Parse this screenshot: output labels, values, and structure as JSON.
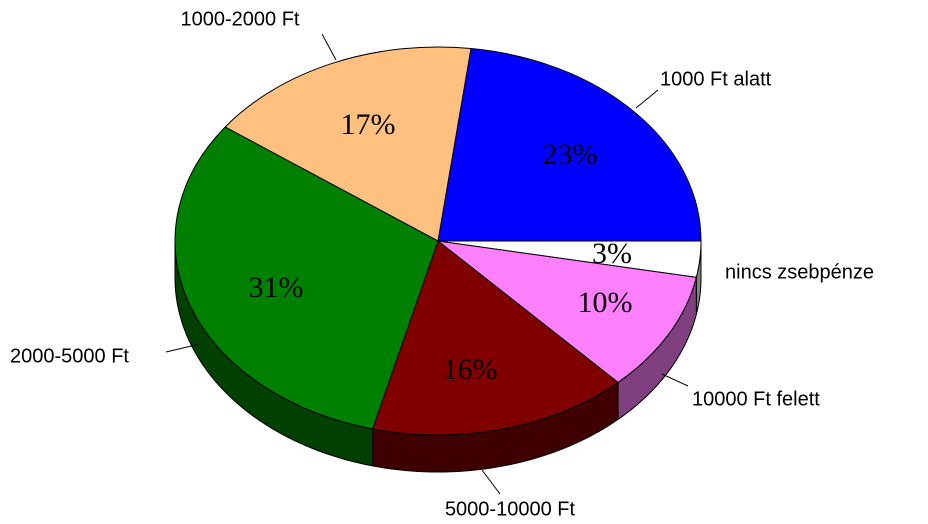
{
  "chart_data": {
    "type": "pie",
    "categories": [
      "1000 Ft alatt",
      "nincs zsebpénze",
      "10000 Ft felett",
      "5000-10000 Ft",
      "2000-5000 Ft",
      "1000-2000 Ft"
    ],
    "values": [
      23,
      3,
      10,
      16,
      31,
      17
    ],
    "value_labels": [
      "23%",
      "3%",
      "10%",
      "16%",
      "31%",
      "17%"
    ],
    "colors": [
      "#0000ff",
      "#ffffff",
      "#ff80ff",
      "#800000",
      "#008000",
      "#ffc080"
    ]
  }
}
